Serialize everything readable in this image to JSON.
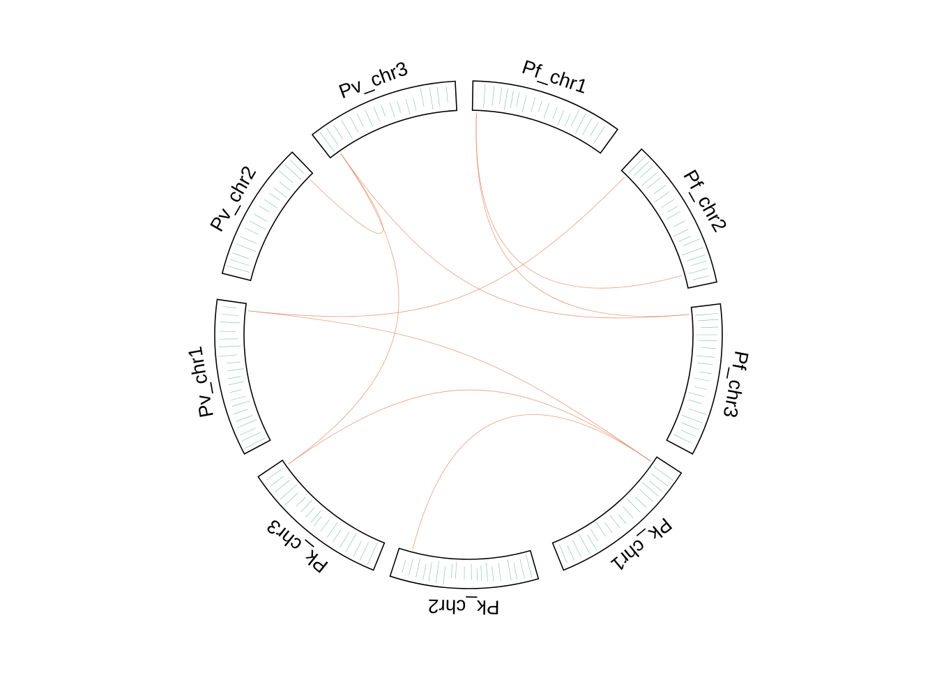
{
  "colors": {
    "sector_outline": "#000000",
    "feature_marks": "#6aae9a",
    "links": "#e07a52",
    "background": "#ffffff"
  },
  "sectors": [
    {
      "label": "Pf_chr1",
      "marks": [
        8,
        14,
        19,
        23,
        27,
        31,
        36,
        42,
        47,
        52,
        58,
        63,
        68,
        72,
        77,
        82,
        87,
        92
      ]
    },
    {
      "label": "Pf_chr2",
      "marks": [
        5,
        9,
        13,
        18,
        22,
        28,
        33,
        39,
        44,
        48,
        55,
        61,
        66,
        70,
        76,
        81,
        85,
        90,
        95
      ]
    },
    {
      "label": "Pf_chr3",
      "marks": [
        6,
        10,
        15,
        20,
        24,
        29,
        35,
        40,
        46,
        51,
        57,
        62,
        67,
        73,
        79,
        84,
        89,
        94
      ]
    },
    {
      "label": "Pk_chr1",
      "marks": [
        7,
        12,
        17,
        21,
        26,
        32,
        37,
        43,
        49,
        54,
        60,
        65,
        71,
        75,
        80,
        86,
        91,
        96
      ]
    },
    {
      "label": "Pk_chr2",
      "marks": [
        4,
        9,
        14,
        18,
        25,
        30,
        34,
        38,
        41,
        45,
        50,
        56,
        59,
        64,
        69,
        74,
        78,
        83,
        88,
        93
      ]
    },
    {
      "label": "Pk_chr3",
      "marks": [
        5,
        11,
        16,
        22,
        27,
        33,
        38,
        44,
        50,
        53,
        58,
        63,
        68,
        74,
        79,
        85,
        90,
        95
      ]
    },
    {
      "label": "Pv_chr1",
      "marks": [
        3,
        8,
        12,
        17,
        21,
        26,
        31,
        35,
        40,
        45,
        49,
        54,
        59,
        64,
        70,
        75,
        80,
        86,
        91,
        96
      ]
    },
    {
      "label": "Pv_chr2",
      "marks": [
        6,
        11,
        16,
        23,
        29,
        36,
        42,
        48,
        55,
        61,
        67,
        72,
        78,
        84,
        90,
        95
      ]
    },
    {
      "label": "Pv_chr3",
      "marks": [
        5,
        10,
        15,
        21,
        27,
        32,
        38,
        44,
        49,
        55,
        60,
        66,
        71,
        77,
        83,
        88,
        94
      ]
    }
  ],
  "links": [
    {
      "from": "Pf_chr1",
      "from_pos": 3,
      "to": "Pf_chr2",
      "to_pos": 90
    },
    {
      "from": "Pf_chr1",
      "from_pos": 3,
      "to": "Pf_chr3",
      "to_pos": 5
    },
    {
      "from": "Pf_chr2",
      "from_pos": 5,
      "to": "Pv_chr1",
      "to_pos": 95
    },
    {
      "from": "Pv_chr3",
      "from_pos": 8,
      "to": "Pf_chr3",
      "to_pos": 5
    },
    {
      "from": "Pv_chr3",
      "from_pos": 8,
      "to": "Pk_chr3",
      "to_pos": 95
    },
    {
      "from": "Pv_chr3",
      "from_pos": 8,
      "to": "Pv_chr2",
      "to_pos": 95
    },
    {
      "from": "Pk_chr1",
      "from_pos": 5,
      "to": "Pv_chr1",
      "to_pos": 95
    },
    {
      "from": "Pk_chr1",
      "from_pos": 5,
      "to": "Pk_chr2",
      "to_pos": 90
    },
    {
      "from": "Pk_chr1",
      "from_pos": 5,
      "to": "Pk_chr3",
      "to_pos": 95
    }
  ]
}
